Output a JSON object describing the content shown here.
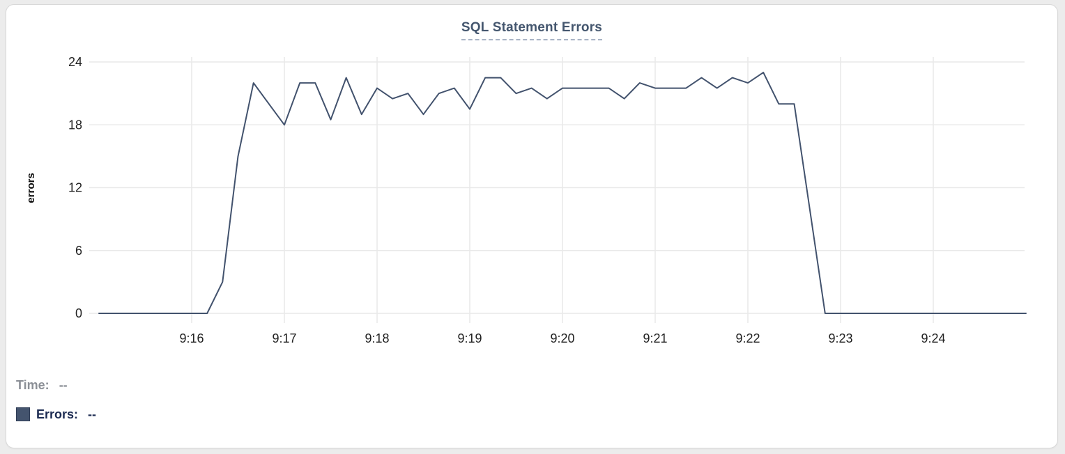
{
  "title": "SQL Statement Errors",
  "legend": {
    "time_label": "Time:",
    "time_value": "--",
    "errors_label": "Errors:",
    "errors_value": "--",
    "swatch_color": "#44546e"
  },
  "colors": {
    "line": "#42526d",
    "grid": "#e9e9e9",
    "tick_text": "#1f1f1f",
    "axis_title_text": "#0a0a0a"
  },
  "chart_data": {
    "type": "line",
    "title": "SQL Statement Errors",
    "xlabel": "",
    "ylabel": "errors",
    "ylim": [
      0,
      24
    ],
    "yticks": [
      0,
      6,
      12,
      18,
      24
    ],
    "xticks": [
      "9:16",
      "9:17",
      "9:18",
      "9:19",
      "9:20",
      "9:21",
      "9:22",
      "9:23",
      "9:24"
    ],
    "x_range": [
      "9:14:54",
      "9:25:00"
    ],
    "grid": true,
    "legend_position": "bottom-left",
    "series": [
      {
        "name": "Errors",
        "x": [
          "9:15:00",
          "9:15:10",
          "9:15:20",
          "9:15:30",
          "9:15:40",
          "9:15:50",
          "9:16:00",
          "9:16:10",
          "9:16:20",
          "9:16:30",
          "9:16:40",
          "9:16:50",
          "9:17:00",
          "9:17:10",
          "9:17:20",
          "9:17:30",
          "9:17:40",
          "9:17:50",
          "9:18:00",
          "9:18:10",
          "9:18:20",
          "9:18:30",
          "9:18:40",
          "9:18:50",
          "9:19:00",
          "9:19:10",
          "9:19:20",
          "9:19:30",
          "9:19:40",
          "9:19:50",
          "9:20:00",
          "9:20:10",
          "9:20:20",
          "9:20:30",
          "9:20:40",
          "9:20:50",
          "9:21:00",
          "9:21:10",
          "9:21:20",
          "9:21:30",
          "9:21:40",
          "9:21:50",
          "9:22:00",
          "9:22:10",
          "9:22:20",
          "9:22:30",
          "9:22:40",
          "9:22:50",
          "9:23:00",
          "9:23:10",
          "9:23:20",
          "9:23:30",
          "9:23:40",
          "9:23:50",
          "9:24:00",
          "9:24:10",
          "9:24:20",
          "9:24:30",
          "9:24:40",
          "9:24:50",
          "9:25:00"
        ],
        "values": [
          0,
          0,
          0,
          0,
          0,
          0,
          0,
          0,
          3,
          15,
          22,
          20,
          18,
          22,
          22,
          18.5,
          22.5,
          19,
          21.5,
          20.5,
          21,
          19,
          21,
          21.5,
          19.5,
          22.5,
          22.5,
          21,
          21.5,
          20.5,
          21.5,
          21.5,
          21.5,
          21.5,
          20.5,
          22,
          21.5,
          21.5,
          21.5,
          22.5,
          21.5,
          22.5,
          22,
          23,
          20,
          20,
          10,
          0,
          0,
          0,
          0,
          0,
          0,
          0,
          0,
          0,
          0,
          0,
          0,
          0,
          0
        ]
      }
    ]
  }
}
